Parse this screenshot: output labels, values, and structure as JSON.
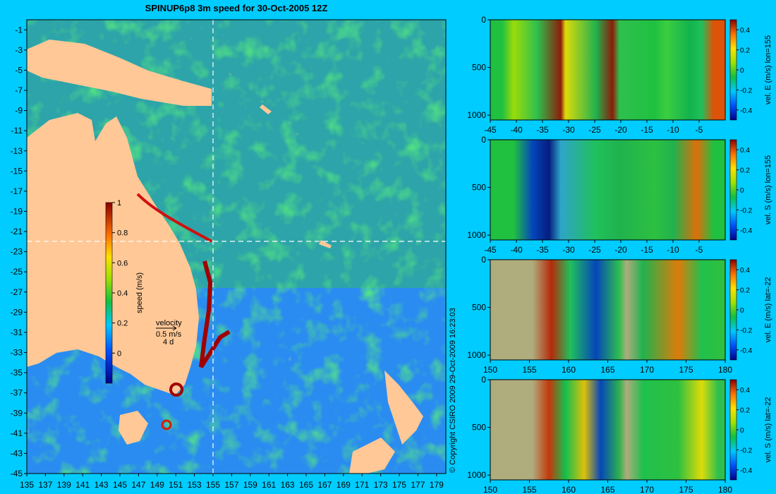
{
  "page": {
    "title": "SPINUP6p8 3m speed for 30-Oct-2005 12Z",
    "credit": "© Copyright CSIRO 2009   29-Oct-2009 16:23:03"
  },
  "colors": {
    "background": "#00ccff",
    "land": "#ffc896",
    "section_land": "#c8a888",
    "guide_line": "#ffffff"
  },
  "map": {
    "guide_lon": 155,
    "guide_lat": -22,
    "velocity_key": {
      "label": "velocity",
      "speed": "0.5 m/s",
      "duration": "4 d"
    }
  },
  "chart_data": [
    {
      "type": "heatmap",
      "title": "SPINUP6p8 3m speed for 30-Oct-2005 12Z",
      "x_ticks": [
        135,
        137,
        139,
        141,
        143,
        145,
        147,
        149,
        151,
        153,
        155,
        157,
        159,
        161,
        163,
        165,
        167,
        169,
        171,
        173,
        175,
        177,
        179
      ],
      "y_ticks": [
        -1,
        -3,
        -5,
        -7,
        -9,
        -11,
        -13,
        -15,
        -17,
        -19,
        -21,
        -23,
        -25,
        -27,
        -29,
        -31,
        -33,
        -35,
        -37,
        -39,
        -41,
        -43,
        -45
      ],
      "xlim": [
        135,
        180
      ],
      "ylim": [
        -45,
        0
      ],
      "colorbar": {
        "label": "speed (m/s)",
        "ticks": [
          0,
          0.2,
          0.4,
          0.6,
          0.8,
          1
        ],
        "range": [
          -0.2,
          1
        ]
      }
    },
    {
      "type": "heatmap",
      "x_ticks": [
        -45,
        -40,
        -35,
        -30,
        -25,
        -20,
        -15,
        -10,
        -5
      ],
      "xlim": [
        -45,
        0
      ],
      "y_ticks": [
        0,
        500,
        1000
      ],
      "ylim": [
        0,
        1050
      ],
      "colorbar": {
        "label": "vel. E (m/s) lon=155",
        "ticks": [
          0.4,
          0.2,
          0,
          -0.2,
          -0.4
        ]
      }
    },
    {
      "type": "heatmap",
      "x_ticks": [
        -45,
        -40,
        -35,
        -30,
        -25,
        -20,
        -15,
        -10,
        -5
      ],
      "xlim": [
        -45,
        0
      ],
      "y_ticks": [
        0,
        500,
        1000
      ],
      "ylim": [
        0,
        1050
      ],
      "colorbar": {
        "label": "vel. S (m/s) lon=155",
        "ticks": [
          0.4,
          0.2,
          0,
          -0.2,
          -0.4
        ]
      }
    },
    {
      "type": "heatmap",
      "x_ticks": [
        150,
        155,
        160,
        165,
        170,
        175,
        180
      ],
      "xlim": [
        150,
        180
      ],
      "y_ticks": [
        0,
        500,
        1000
      ],
      "ylim": [
        0,
        1050
      ],
      "colorbar": {
        "label": "vel. E (m/s) lat=-22",
        "ticks": [
          0.4,
          0.2,
          0,
          -0.2,
          -0.4
        ]
      }
    },
    {
      "type": "heatmap",
      "x_ticks": [
        150,
        155,
        160,
        165,
        170,
        175,
        180
      ],
      "xlim": [
        150,
        180
      ],
      "y_ticks": [
        0,
        500,
        1000
      ],
      "ylim": [
        0,
        1050
      ],
      "colorbar": {
        "label": "vel. S (m/s) lat=-22",
        "ticks": [
          0.4,
          0.2,
          0,
          -0.2,
          -0.4
        ]
      }
    }
  ]
}
